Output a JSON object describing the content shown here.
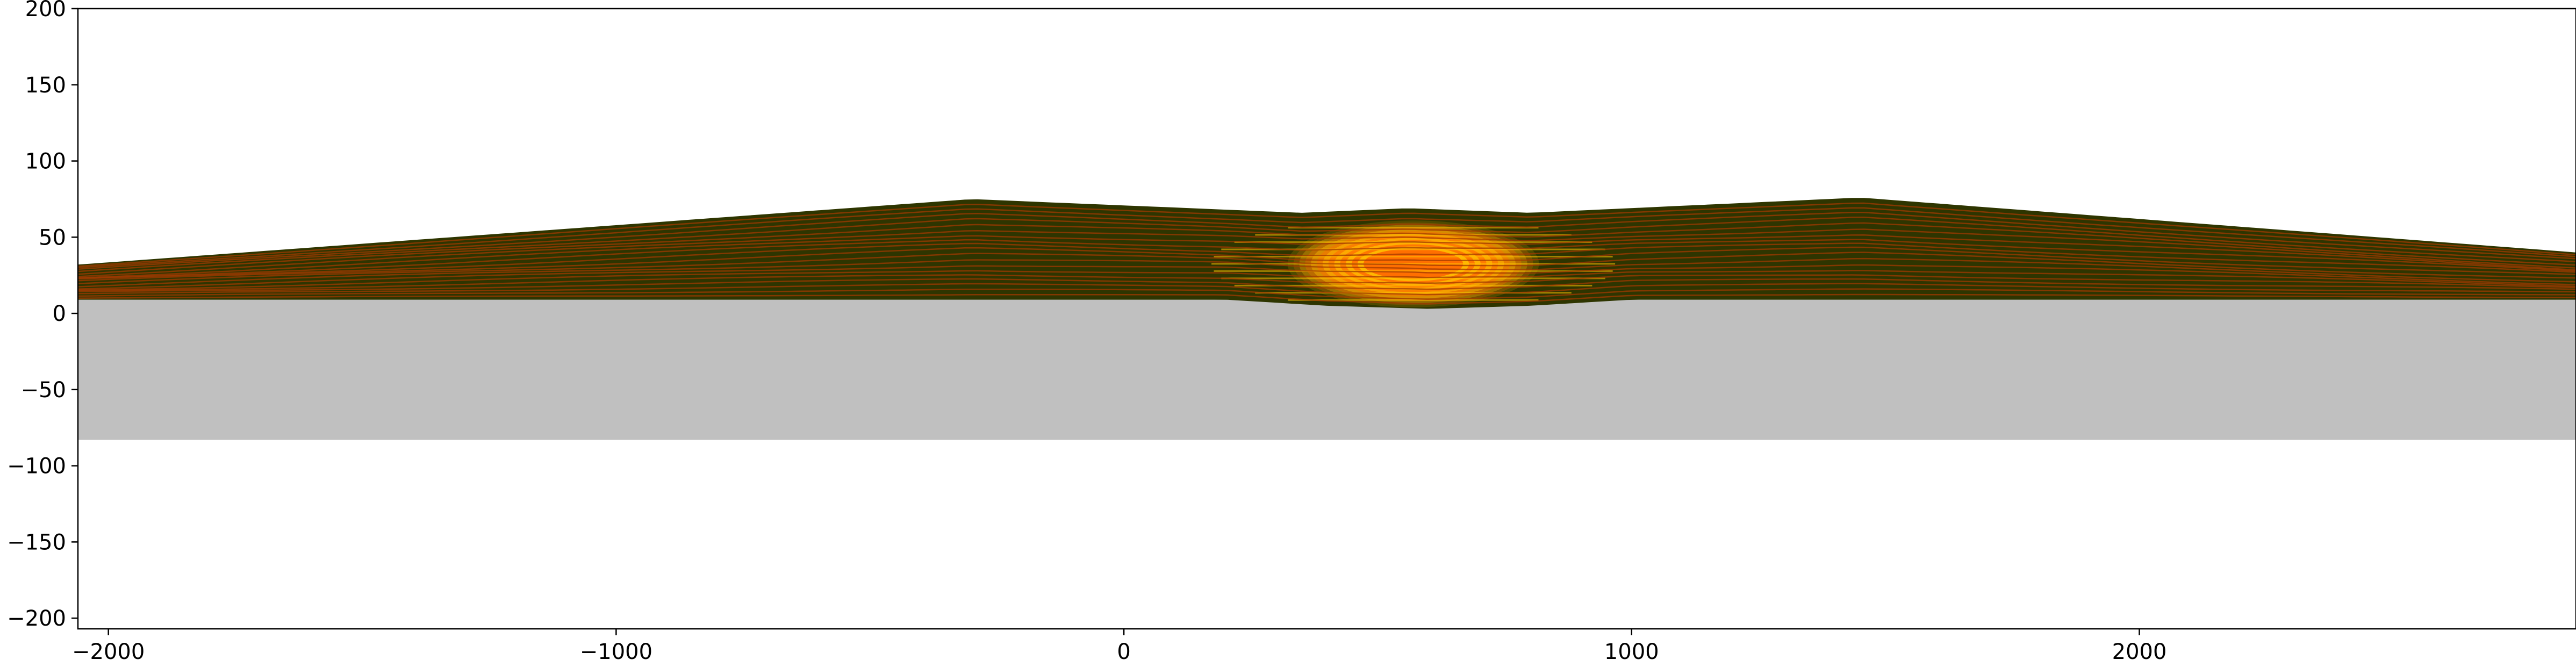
{
  "chart_data": {
    "type": "area",
    "title": "",
    "xlabel": "",
    "ylabel": "",
    "xlim": [
      -2060,
      2860
    ],
    "ylim": [
      -207,
      200
    ],
    "grid": false,
    "legend": "none",
    "x_ticks": [
      {
        "value": -2000,
        "label": "−2000"
      },
      {
        "value": -1000,
        "label": "−1000"
      },
      {
        "value": 0,
        "label": "0"
      },
      {
        "value": 1000,
        "label": "1000"
      },
      {
        "value": 2000,
        "label": "2000"
      }
    ],
    "y_ticks": [
      {
        "value": 200,
        "label": "200"
      },
      {
        "value": 150,
        "label": "150"
      },
      {
        "value": 100,
        "label": "100"
      },
      {
        "value": 50,
        "label": "50"
      },
      {
        "value": 0,
        "label": "0"
      },
      {
        "value": -50,
        "label": "−50"
      },
      {
        "value": -100,
        "label": "−100"
      },
      {
        "value": -150,
        "label": "−150"
      },
      {
        "value": -200,
        "label": "−200"
      }
    ],
    "basement": {
      "top": 9,
      "bottom": -83,
      "color": "#c0c0c0"
    },
    "sediment_top_surface": [
      {
        "x": -2060,
        "y": 32
      },
      {
        "x": -300,
        "y": 75
      },
      {
        "x": 350,
        "y": 66
      },
      {
        "x": 560,
        "y": 69
      },
      {
        "x": 800,
        "y": 66
      },
      {
        "x": 1450,
        "y": 76
      },
      {
        "x": 2860,
        "y": 40
      }
    ],
    "sediment_base_surface": [
      {
        "x": -2060,
        "y": 9
      },
      {
        "x": 200,
        "y": 9
      },
      {
        "x": 400,
        "y": 5
      },
      {
        "x": 600,
        "y": 3
      },
      {
        "x": 800,
        "y": 5
      },
      {
        "x": 1000,
        "y": 9
      },
      {
        "x": 2860,
        "y": 9
      }
    ],
    "layer_count": 20,
    "hot_zone": {
      "center_x": 570,
      "half_width": 450,
      "y_bottom": 4,
      "y_top": 61
    },
    "colors": {
      "sediment": "#2e3500",
      "layer_line": "#a03a00",
      "hot_core": "#ff6a00",
      "hot_outer": "#ffc000",
      "axis": "#000000",
      "basement": "#c0c0c0"
    }
  }
}
